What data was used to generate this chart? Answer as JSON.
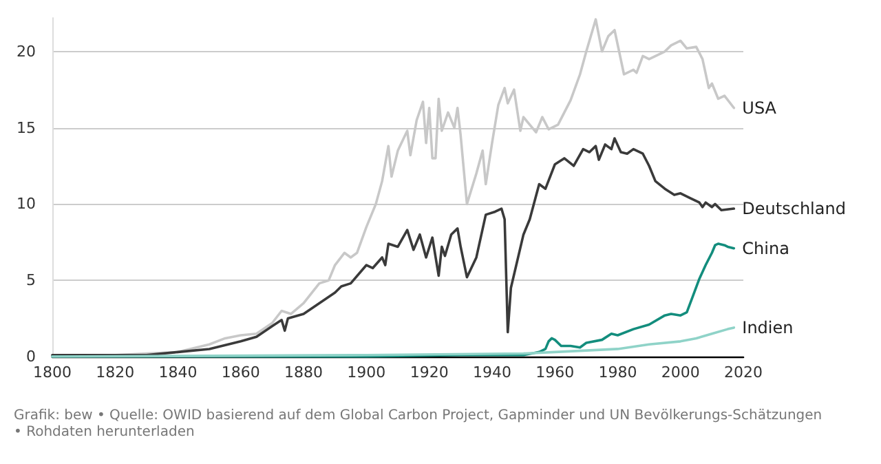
{
  "chart_data": {
    "type": "line",
    "xlim": [
      1800,
      2020
    ],
    "xticks": [
      1800,
      1820,
      1840,
      1860,
      1880,
      1900,
      1920,
      1940,
      1960,
      1980,
      2000,
      2020
    ],
    "yticks": [
      0,
      5,
      10,
      15,
      20
    ],
    "ylim": [
      0,
      22.2
    ],
    "grid": "y",
    "legend": false,
    "marker": "none",
    "line_style": "solid",
    "annotations": [
      "Grafik: bew • Quelle: OWID basierend auf dem Global Carbon Project, Gapminder und UN Bevölkerungs-Schätzungen",
      "• Rohdaten herunterladen"
    ],
    "series": [
      {
        "name": "USA",
        "color": "#c8c8c8",
        "x": [
          1800,
          1820,
          1830,
          1840,
          1850,
          1855,
          1860,
          1865,
          1870,
          1873,
          1876,
          1880,
          1885,
          1888,
          1890,
          1893,
          1895,
          1897,
          1900,
          1903,
          1905,
          1907,
          1908,
          1910,
          1913,
          1914,
          1916,
          1918,
          1919,
          1920,
          1921,
          1922,
          1923,
          1924,
          1926,
          1928,
          1929,
          1930,
          1932,
          1935,
          1937,
          1938,
          1940,
          1942,
          1944,
          1945,
          1947,
          1949,
          1950,
          1952,
          1954,
          1956,
          1958,
          1961,
          1965,
          1968,
          1970,
          1973,
          1975,
          1977,
          1979,
          1982,
          1985,
          1986,
          1988,
          1990,
          1995,
          1997,
          2000,
          2002,
          2005,
          2007,
          2009,
          2010,
          2012,
          2014,
          2017
        ],
        "values": [
          0.1,
          0.1,
          0.2,
          0.3,
          0.8,
          1.2,
          1.4,
          1.5,
          2.2,
          3.0,
          2.8,
          3.5,
          4.8,
          5.0,
          6.0,
          6.8,
          6.5,
          6.8,
          8.5,
          10.0,
          11.5,
          13.8,
          11.8,
          13.5,
          14.8,
          13.2,
          15.5,
          16.7,
          14.0,
          16.3,
          13.0,
          13.0,
          16.9,
          14.8,
          16.0,
          15.0,
          16.3,
          14.5,
          10.0,
          12.0,
          13.5,
          11.3,
          14.0,
          16.5,
          17.6,
          16.6,
          17.5,
          14.8,
          15.7,
          15.2,
          14.7,
          15.7,
          14.9,
          15.2,
          16.8,
          18.5,
          20.0,
          22.1,
          20.0,
          21.0,
          21.4,
          18.5,
          18.8,
          18.6,
          19.7,
          19.5,
          20.0,
          20.4,
          20.7,
          20.2,
          20.3,
          19.5,
          17.6,
          17.9,
          16.9,
          17.1,
          16.3
        ]
      },
      {
        "name": "Deutschland",
        "color": "#3a3a3a",
        "x": [
          1800,
          1830,
          1840,
          1850,
          1860,
          1865,
          1870,
          1873,
          1874,
          1875,
          1880,
          1885,
          1890,
          1892,
          1895,
          1900,
          1902,
          1905,
          1906,
          1907,
          1910,
          1913,
          1915,
          1917,
          1919,
          1921,
          1923,
          1924,
          1925,
          1927,
          1929,
          1930,
          1932,
          1935,
          1938,
          1941,
          1943,
          1944,
          1945,
          1946,
          1950,
          1952,
          1955,
          1957,
          1960,
          1963,
          1966,
          1969,
          1971,
          1973,
          1974,
          1976,
          1978,
          1979,
          1981,
          1983,
          1985,
          1988,
          1990,
          1992,
          1995,
          1998,
          2000,
          2003,
          2006,
          2007,
          2008,
          2010,
          2011,
          2013,
          2017
        ],
        "values": [
          0.1,
          0.1,
          0.3,
          0.5,
          1.0,
          1.3,
          2.0,
          2.4,
          1.7,
          2.5,
          2.8,
          3.5,
          4.2,
          4.6,
          4.8,
          6.0,
          5.8,
          6.5,
          6.0,
          7.4,
          7.2,
          8.3,
          7.0,
          8.0,
          6.5,
          7.8,
          5.3,
          7.2,
          6.6,
          8.0,
          8.4,
          7.2,
          5.2,
          6.5,
          9.3,
          9.5,
          9.7,
          9.0,
          1.6,
          4.5,
          8.0,
          9.0,
          11.3,
          11.0,
          12.6,
          13.0,
          12.5,
          13.6,
          13.4,
          13.8,
          12.9,
          13.9,
          13.6,
          14.3,
          13.4,
          13.3,
          13.6,
          13.3,
          12.5,
          11.5,
          11.0,
          10.6,
          10.7,
          10.4,
          10.1,
          9.8,
          10.1,
          9.8,
          10.0,
          9.6,
          9.7
        ]
      },
      {
        "name": "China",
        "color": "#138d7d",
        "x": [
          1800,
          1900,
          1930,
          1940,
          1945,
          1950,
          1955,
          1957,
          1958,
          1959,
          1960,
          1962,
          1965,
          1968,
          1970,
          1975,
          1978,
          1980,
          1985,
          1990,
          1995,
          1997,
          2000,
          2002,
          2004,
          2006,
          2008,
          2010,
          2011,
          2012,
          2014,
          2015,
          2017
        ],
        "values": [
          0,
          0,
          0.1,
          0.1,
          0.1,
          0.1,
          0.3,
          0.5,
          1.0,
          1.2,
          1.1,
          0.7,
          0.7,
          0.6,
          0.9,
          1.1,
          1.5,
          1.4,
          1.8,
          2.1,
          2.7,
          2.8,
          2.7,
          2.9,
          4.0,
          5.1,
          6.0,
          6.8,
          7.3,
          7.4,
          7.3,
          7.2,
          7.1
        ]
      },
      {
        "name": "Indien",
        "color": "#8fd3c8",
        "x": [
          1800,
          1900,
          1950,
          1960,
          1970,
          1980,
          1990,
          2000,
          2005,
          2010,
          2015,
          2017
        ],
        "values": [
          0,
          0.1,
          0.2,
          0.3,
          0.4,
          0.5,
          0.8,
          1.0,
          1.2,
          1.5,
          1.8,
          1.9
        ]
      }
    ]
  }
}
